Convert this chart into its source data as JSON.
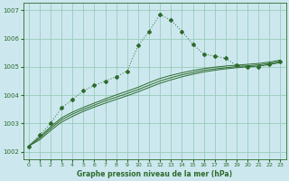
{
  "xlabel": "Graphe pression niveau de la mer (hPa)",
  "bg_color": "#cce8ee",
  "grid_color": "#99ccbb",
  "line_color": "#2d6a2d",
  "xlim": [
    -0.5,
    23.5
  ],
  "ylim": [
    1001.75,
    1007.25
  ],
  "yticks": [
    1002,
    1003,
    1004,
    1005,
    1006,
    1007
  ],
  "xticks": [
    0,
    1,
    2,
    3,
    4,
    5,
    6,
    7,
    8,
    9,
    10,
    11,
    12,
    13,
    14,
    15,
    16,
    17,
    18,
    19,
    20,
    21,
    22,
    23
  ],
  "series_dotted": {
    "x": [
      0,
      1,
      2,
      3,
      4,
      5,
      6,
      7,
      8,
      9,
      10,
      11,
      12,
      13,
      14,
      15,
      16,
      17,
      18,
      19,
      20,
      21,
      22,
      23
    ],
    "y": [
      1002.2,
      1002.6,
      1003.0,
      1003.55,
      1003.85,
      1004.15,
      1004.35,
      1004.5,
      1004.65,
      1004.85,
      1005.75,
      1006.25,
      1006.85,
      1006.65,
      1006.25,
      1005.8,
      1005.45,
      1005.38,
      1005.3,
      1005.05,
      1005.0,
      1005.0,
      1005.1,
      1005.2
    ]
  },
  "series_smooth1": {
    "x": [
      0,
      1,
      2,
      3,
      4,
      5,
      6,
      7,
      8,
      9,
      10,
      11,
      12,
      13,
      14,
      15,
      16,
      17,
      18,
      19,
      20,
      21,
      22,
      23
    ],
    "y": [
      1002.2,
      1002.42,
      1002.75,
      1003.05,
      1003.25,
      1003.43,
      1003.58,
      1003.72,
      1003.85,
      1003.98,
      1004.12,
      1004.27,
      1004.42,
      1004.54,
      1004.65,
      1004.74,
      1004.82,
      1004.88,
      1004.93,
      1004.97,
      1005.0,
      1005.03,
      1005.08,
      1005.15
    ]
  },
  "series_smooth2": {
    "x": [
      0,
      1,
      2,
      3,
      4,
      5,
      6,
      7,
      8,
      9,
      10,
      11,
      12,
      13,
      14,
      15,
      16,
      17,
      18,
      19,
      20,
      21,
      22,
      23
    ],
    "y": [
      1002.2,
      1002.48,
      1002.82,
      1003.13,
      1003.33,
      1003.5,
      1003.65,
      1003.8,
      1003.93,
      1004.06,
      1004.2,
      1004.35,
      1004.5,
      1004.62,
      1004.72,
      1004.8,
      1004.88,
      1004.93,
      1004.97,
      1005.01,
      1005.04,
      1005.07,
      1005.12,
      1005.19
    ]
  },
  "series_smooth3": {
    "x": [
      0,
      1,
      2,
      3,
      4,
      5,
      6,
      7,
      8,
      9,
      10,
      11,
      12,
      13,
      14,
      15,
      16,
      17,
      18,
      19,
      20,
      21,
      22,
      23
    ],
    "y": [
      1002.2,
      1002.53,
      1002.88,
      1003.2,
      1003.4,
      1003.57,
      1003.72,
      1003.87,
      1004.01,
      1004.14,
      1004.28,
      1004.44,
      1004.59,
      1004.7,
      1004.79,
      1004.87,
      1004.94,
      1004.99,
      1005.03,
      1005.06,
      1005.09,
      1005.12,
      1005.17,
      1005.24
    ]
  }
}
